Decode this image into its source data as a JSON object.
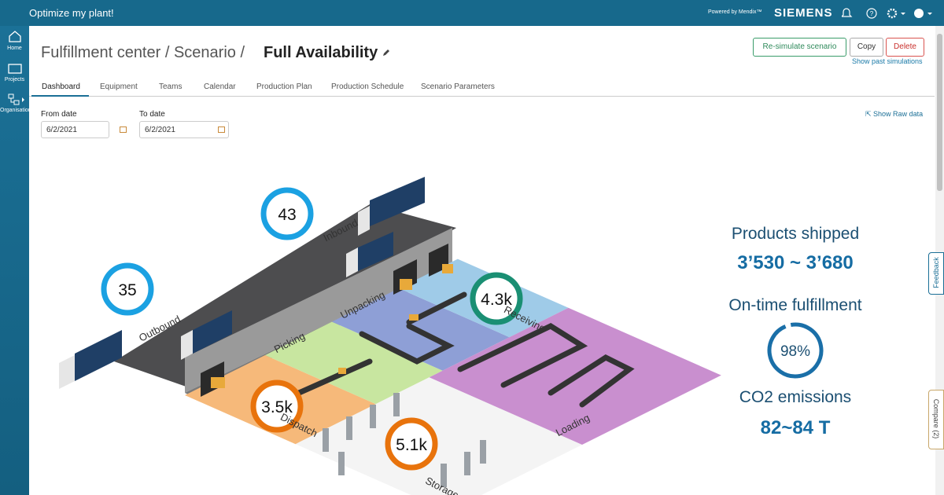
{
  "header": {
    "app_title": "Optimize my plant!",
    "powered_by": "Powered by Mendix™",
    "brand": "SIEMENS"
  },
  "sidebar": {
    "items": [
      "Home",
      "Projects",
      "Organisation"
    ]
  },
  "page": {
    "breadcrumb": "Fulfillment center / Scenario /",
    "title": "Full Availability",
    "buttons": [
      "Re-simulate scenario",
      "Copy",
      "Delete"
    ],
    "link": "Show past simulations"
  },
  "tabs": [
    "Dashboard",
    "Equipment",
    "Teams",
    "Calendar",
    "Production Plan",
    "Production Schedule",
    "Scenario Parameters"
  ],
  "filters": {
    "from_label": "From date",
    "from_value": "6/2/2021",
    "to_label": "To date",
    "to_value": "6/2/2021",
    "raw_data": "Show Raw data"
  },
  "illustration": {
    "bubbles": [
      "43",
      "35",
      "4.3k",
      "3.5k",
      "5.1k"
    ],
    "zones": [
      "Inbound",
      "Outbound",
      "Unpacking",
      "Receiving",
      "Picking",
      "Loading",
      "Dispatch",
      "Storage"
    ]
  },
  "kpis": [
    {
      "label": "Products shipped",
      "value": "3’530 ~ 3’680"
    },
    {
      "label": "On-time fulfillment",
      "value": "98%"
    },
    {
      "label": "CO2 emissions",
      "value": "82~84 T"
    }
  ],
  "side_tabs": [
    "Feedback",
    "Compare (2)"
  ]
}
